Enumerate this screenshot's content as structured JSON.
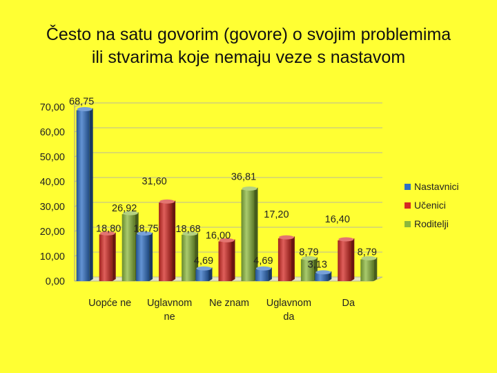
{
  "slide": {
    "title_line1": "Često na satu govorim (govore) o svojim problemima",
    "title_line2": "ili stvarima koje nemaju veze s nastavom"
  },
  "chart_data": {
    "type": "bar",
    "categories": [
      [
        "Uopće ne"
      ],
      [
        "Uglavnom",
        "ne"
      ],
      [
        "Ne znam"
      ],
      [
        "Uglavnom",
        "da"
      ],
      [
        "Da"
      ]
    ],
    "series": [
      {
        "name": "Nastavnici",
        "color": "#2F6FC4",
        "values": [
          68.75,
          18.75,
          4.69,
          4.69,
          3.13
        ],
        "labels": [
          "68,75",
          "18,75",
          "4,69",
          "4,69",
          "3,13"
        ]
      },
      {
        "name": "Učenici",
        "color": "#D42A24",
        "values": [
          18.8,
          31.6,
          16.0,
          17.2,
          16.4
        ],
        "labels": [
          "18,80",
          "31,60",
          "16,00",
          "17,20",
          "16,40"
        ]
      },
      {
        "name": "Roditelji",
        "color": "#8CB83C",
        "values": [
          26.92,
          18.68,
          36.81,
          8.79,
          8.79
        ],
        "labels": [
          "26,92",
          "18,68",
          "36,81",
          "8,79",
          "8,79"
        ]
      }
    ],
    "yticks": [
      "0,00",
      "10,00",
      "20,00",
      "30,00",
      "40,00",
      "50,00",
      "60,00",
      "70,00"
    ],
    "ylim": [
      0,
      70
    ],
    "grid": true,
    "legend": "right"
  }
}
